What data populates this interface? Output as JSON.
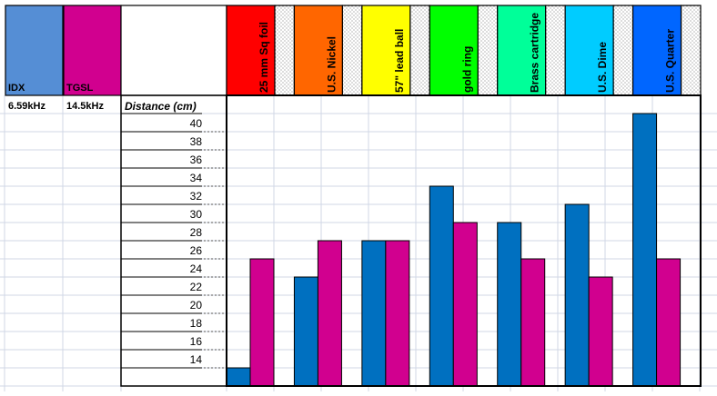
{
  "legend": [
    {
      "name": "IDX",
      "freq": "6.59kHz",
      "color": "#558ed5"
    },
    {
      "name": "TGSL",
      "freq": "14.5kHz",
      "color": "#d1008f"
    }
  ],
  "chart_data": {
    "type": "bar",
    "ylabel": "Distance (cm)",
    "y_ticks": [
      "40",
      "38",
      "36",
      "34",
      "32",
      "30",
      "28",
      "26",
      "24",
      "22",
      "20",
      "18",
      "16",
      "14"
    ],
    "categories": [
      "25 mm Sq foil",
      "U.S. Nickel",
      "57\" lead ball",
      "gold ring",
      "Brass cartridge",
      "U.S. Dime",
      "U.S. Quarter"
    ],
    "header_colors": [
      "#ff0000",
      "#ff6600",
      "#ffff00",
      "#00ff00",
      "#00ff99",
      "#00ccff",
      "#0066ff"
    ],
    "series": [
      {
        "name": "IDX",
        "color": "#0070c0",
        "values": [
          14,
          24,
          28,
          34,
          30,
          32,
          42
        ]
      },
      {
        "name": "TGSL",
        "color": "#d1008f",
        "values": [
          26,
          28,
          28,
          30,
          26,
          24,
          26
        ]
      }
    ],
    "ylim": [
      12,
      44
    ]
  }
}
